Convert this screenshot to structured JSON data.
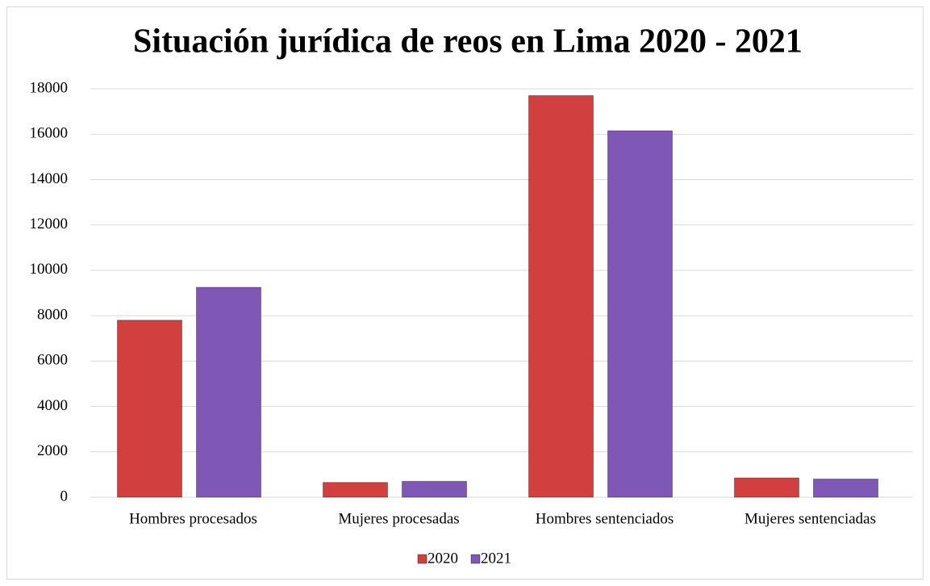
{
  "chart_data": {
    "type": "bar",
    "title": "Situación jurídica de reos en Lima 2020 - 2021",
    "categories": [
      "Hombres procesados",
      "Mujeres procesadas",
      "Hombres sentenciados",
      "Mujeres sentenciadas"
    ],
    "series": [
      {
        "name": "2020",
        "color": "#d23f3f",
        "values": [
          7800,
          650,
          17700,
          850
        ]
      },
      {
        "name": "2021",
        "color": "#7f57b5",
        "values": [
          9250,
          700,
          16150,
          800
        ]
      }
    ],
    "ylim": [
      0,
      18000
    ],
    "yticks": [
      0,
      2000,
      4000,
      6000,
      8000,
      10000,
      12000,
      14000,
      16000,
      18000
    ],
    "grid": true,
    "legend": "bottom"
  }
}
